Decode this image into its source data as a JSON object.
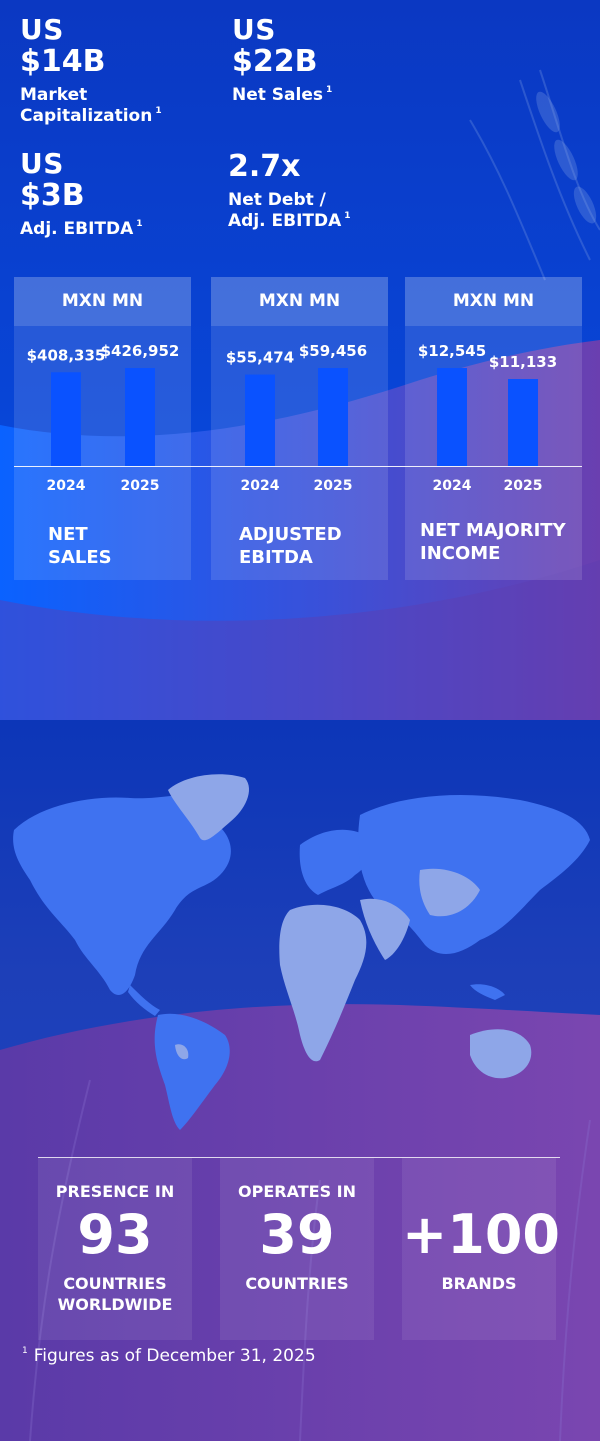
{
  "headline": {
    "market_cap": {
      "currency": "US",
      "value": "$14B",
      "label_line1": "Market",
      "label_line2": "Capitalization",
      "note": "1"
    },
    "net_sales": {
      "currency": "US",
      "value": "$22B",
      "label": "Net Sales",
      "note": "1"
    },
    "adj_ebitda": {
      "currency": "US",
      "value": "$3B",
      "label": "Adj. EBITDA",
      "note": "1"
    },
    "leverage": {
      "value": "2.7x",
      "label_line1": "Net Debt /",
      "label_line2": "Adj. EBITDA",
      "note": "1"
    }
  },
  "chart_data": [
    {
      "type": "bar",
      "unit_header": "MXN MN",
      "categories": [
        "2024",
        "2025"
      ],
      "values": [
        408335,
        426952
      ],
      "value_labels": [
        "$408,335",
        "$426,952"
      ],
      "label_line1": "NET",
      "label_line2": "SALES",
      "bar_color": "#0a52ff"
    },
    {
      "type": "bar",
      "unit_header": "MXN MN",
      "categories": [
        "2024",
        "2025"
      ],
      "values": [
        55474,
        59456
      ],
      "value_labels": [
        "$55,474",
        "$59,456"
      ],
      "label_line1": "ADJUSTED",
      "label_line2": "EBITDA",
      "bar_color": "#0a52ff"
    },
    {
      "type": "bar",
      "unit_header": "MXN MN",
      "categories": [
        "2024",
        "2025"
      ],
      "values": [
        12545,
        11133
      ],
      "value_labels": [
        "$12,545",
        "$11,133"
      ],
      "label_line1": "NET MAJORITY",
      "label_line2": "INCOME",
      "bar_color": "#0a52ff"
    }
  ],
  "stats": [
    {
      "top": "PRESENCE IN",
      "number": "93",
      "bottom_line1": "COUNTRIES",
      "bottom_line2": "WORLDWIDE"
    },
    {
      "top": "OPERATES IN",
      "number": "39",
      "bottom_line1": "COUNTRIES",
      "bottom_line2": ""
    },
    {
      "top": "",
      "number": "+100",
      "bottom_line1": "BRANDS",
      "bottom_line2": ""
    }
  ],
  "footnote": {
    "marker": "1",
    "text": "Figures as of December 31, 2025"
  },
  "colors": {
    "top_bg": "#0b3fc6",
    "bright_blue": "#0a62ff",
    "purple": "#6a3fa8",
    "map_blue": "#3f72f0",
    "map_light": "#8ea6e8",
    "bar": "#0a52ff"
  },
  "map": {
    "icon": "world-map-icon"
  }
}
